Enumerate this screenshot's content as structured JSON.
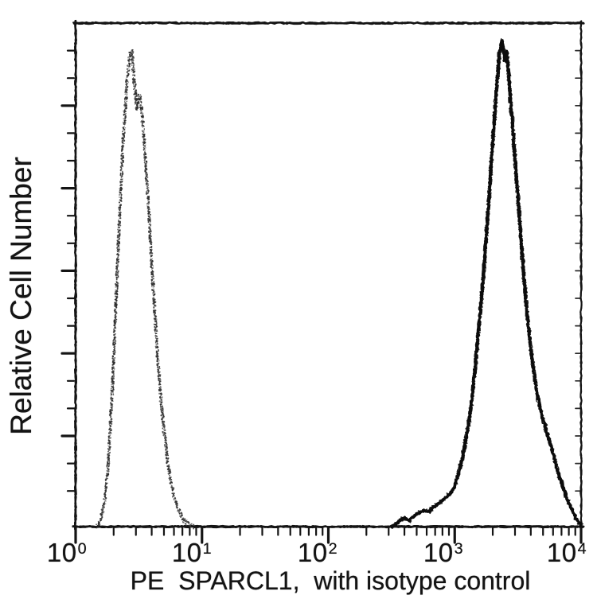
{
  "figure": {
    "background": "#ffffff",
    "ink_color": "#141414",
    "y_axis_label": "Relative Cell Number",
    "x_axis_label": "PE  SPARCL1,  with isotype control",
    "x_ticks": [
      {
        "base": "10",
        "exp": "0"
      },
      {
        "base": "10",
        "exp": "1"
      },
      {
        "base": "10",
        "exp": "2"
      },
      {
        "base": "10",
        "exp": "3"
      },
      {
        "base": "10",
        "exp": "4"
      }
    ]
  },
  "chart_data": {
    "type": "line",
    "subtype": "flow-cytometry-histogram-overlay",
    "title": "",
    "xlabel": "PE  SPARCL1,  with isotype control",
    "ylabel": "Relative Cell Number",
    "x_scale": "log10",
    "x_range": [
      1,
      10000
    ],
    "x_tick_labels": [
      "10^0",
      "10^1",
      "10^2",
      "10^3",
      "10^4"
    ],
    "y_axis_numbers_shown": false,
    "y_range_relative": [
      0,
      1
    ],
    "grid": false,
    "legend": "none",
    "series": [
      {
        "name": "isotype control",
        "style": "dotted",
        "color": "#2e2e2e",
        "peak_value_approx": 2.8,
        "peak_height_rel": 0.945,
        "points_log10x_relheight": [
          [
            0.17,
            0
          ],
          [
            0.2,
            0.015
          ],
          [
            0.23,
            0.05
          ],
          [
            0.26,
            0.13
          ],
          [
            0.29,
            0.27
          ],
          [
            0.32,
            0.45
          ],
          [
            0.35,
            0.63
          ],
          [
            0.38,
            0.78
          ],
          [
            0.405,
            0.88
          ],
          [
            0.425,
            0.935
          ],
          [
            0.445,
            0.945
          ],
          [
            0.465,
            0.88
          ],
          [
            0.485,
            0.83
          ],
          [
            0.505,
            0.855
          ],
          [
            0.525,
            0.82
          ],
          [
            0.55,
            0.74
          ],
          [
            0.575,
            0.64
          ],
          [
            0.6,
            0.53
          ],
          [
            0.625,
            0.43
          ],
          [
            0.65,
            0.335
          ],
          [
            0.675,
            0.255
          ],
          [
            0.7,
            0.19
          ],
          [
            0.725,
            0.135
          ],
          [
            0.75,
            0.095
          ],
          [
            0.775,
            0.063
          ],
          [
            0.8,
            0.04
          ],
          [
            0.83,
            0.023
          ],
          [
            0.86,
            0.012
          ],
          [
            0.89,
            0.005
          ],
          [
            0.93,
            0
          ]
        ]
      },
      {
        "name": "PE SPARCL1",
        "style": "solid",
        "color": "#0c0c0c",
        "peak_value_approx": 2400,
        "peak_height_rel": 0.965,
        "points_log10x_relheight": [
          [
            2.5,
            0
          ],
          [
            2.55,
            0.008
          ],
          [
            2.6,
            0.018
          ],
          [
            2.64,
            0.012
          ],
          [
            2.68,
            0.022
          ],
          [
            2.72,
            0.028
          ],
          [
            2.76,
            0.032
          ],
          [
            2.8,
            0.03
          ],
          [
            2.84,
            0.04
          ],
          [
            2.88,
            0.048
          ],
          [
            2.92,
            0.055
          ],
          [
            2.96,
            0.065
          ],
          [
            3.0,
            0.08
          ],
          [
            3.04,
            0.115
          ],
          [
            3.08,
            0.16
          ],
          [
            3.12,
            0.22
          ],
          [
            3.16,
            0.31
          ],
          [
            3.2,
            0.42
          ],
          [
            3.24,
            0.54
          ],
          [
            3.27,
            0.65
          ],
          [
            3.3,
            0.76
          ],
          [
            3.33,
            0.87
          ],
          [
            3.355,
            0.94
          ],
          [
            3.375,
            0.965
          ],
          [
            3.395,
            0.925
          ],
          [
            3.41,
            0.945
          ],
          [
            3.43,
            0.89
          ],
          [
            3.45,
            0.82
          ],
          [
            3.48,
            0.72
          ],
          [
            3.51,
            0.62
          ],
          [
            3.54,
            0.52
          ],
          [
            3.57,
            0.43
          ],
          [
            3.6,
            0.36
          ],
          [
            3.63,
            0.3
          ],
          [
            3.66,
            0.255
          ],
          [
            3.69,
            0.22
          ],
          [
            3.72,
            0.195
          ],
          [
            3.75,
            0.17
          ],
          [
            3.78,
            0.145
          ],
          [
            3.81,
            0.115
          ],
          [
            3.84,
            0.09
          ],
          [
            3.87,
            0.07
          ],
          [
            3.9,
            0.05
          ],
          [
            3.93,
            0.033
          ],
          [
            3.96,
            0.018
          ],
          [
            3.985,
            0.007
          ],
          [
            4.0,
            0.002
          ]
        ]
      }
    ]
  }
}
